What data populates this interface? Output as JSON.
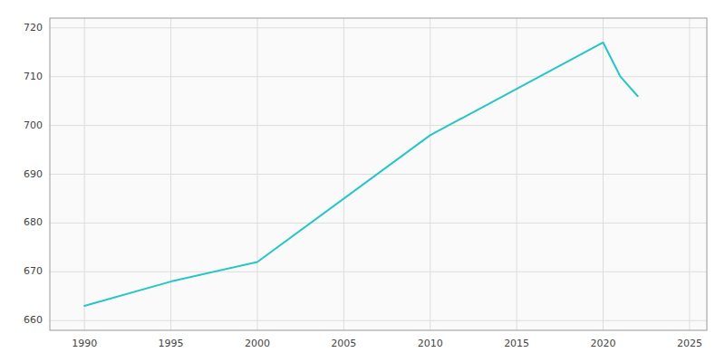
{
  "chart_data": {
    "type": "line",
    "x": [
      1990,
      1995,
      2000,
      2010,
      2020,
      2021,
      2022
    ],
    "values": [
      663,
      668,
      672,
      698,
      717,
      710,
      706
    ],
    "color": "#26c6c6",
    "xlim": [
      1988,
      2026
    ],
    "ylim": [
      658,
      722
    ],
    "xticks": [
      1990,
      1995,
      2000,
      2005,
      2010,
      2015,
      2020,
      2025
    ],
    "yticks": [
      660,
      670,
      680,
      690,
      700,
      710,
      720
    ],
    "grid": true
  }
}
